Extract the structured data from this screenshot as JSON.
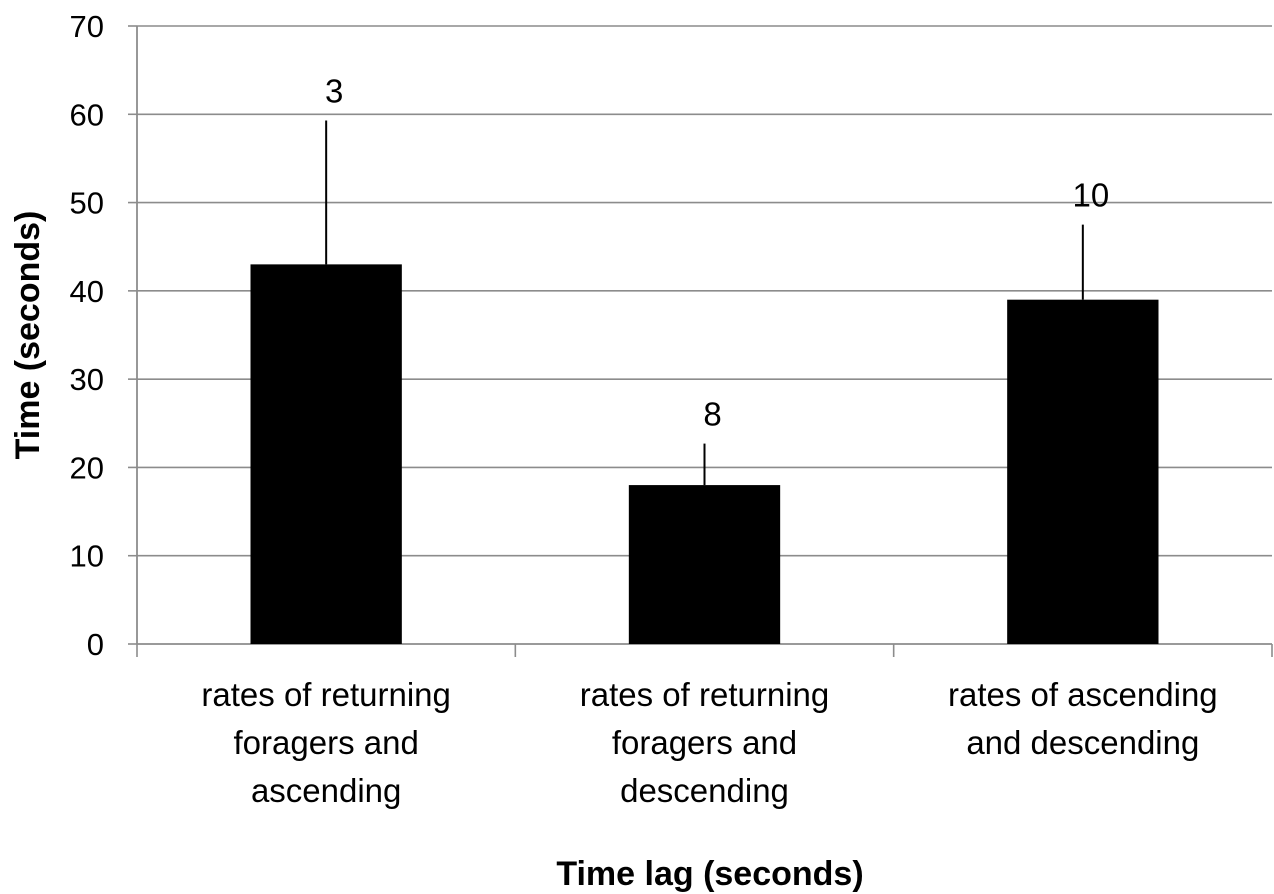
{
  "chart_data": {
    "type": "bar",
    "categories": [
      [
        "rates of returning",
        "foragers and",
        "ascending"
      ],
      [
        "rates of returning",
        "foragers and",
        "descending"
      ],
      [
        "rates of ascending",
        "and descending"
      ]
    ],
    "values": [
      43,
      18,
      39
    ],
    "error_upper": [
      59.3,
      22.7,
      47.5
    ],
    "data_labels": [
      "3",
      "8",
      "10"
    ],
    "xlabel": "Time lag (seconds)",
    "ylabel": "Time (seconds)",
    "ylim": [
      0,
      70
    ],
    "yticks": [
      0,
      10,
      20,
      30,
      40,
      50,
      60,
      70
    ],
    "grid": true,
    "colors": {
      "bar": "#000000",
      "grid": "#8c8c8c",
      "axis": "#8c8c8c"
    }
  }
}
